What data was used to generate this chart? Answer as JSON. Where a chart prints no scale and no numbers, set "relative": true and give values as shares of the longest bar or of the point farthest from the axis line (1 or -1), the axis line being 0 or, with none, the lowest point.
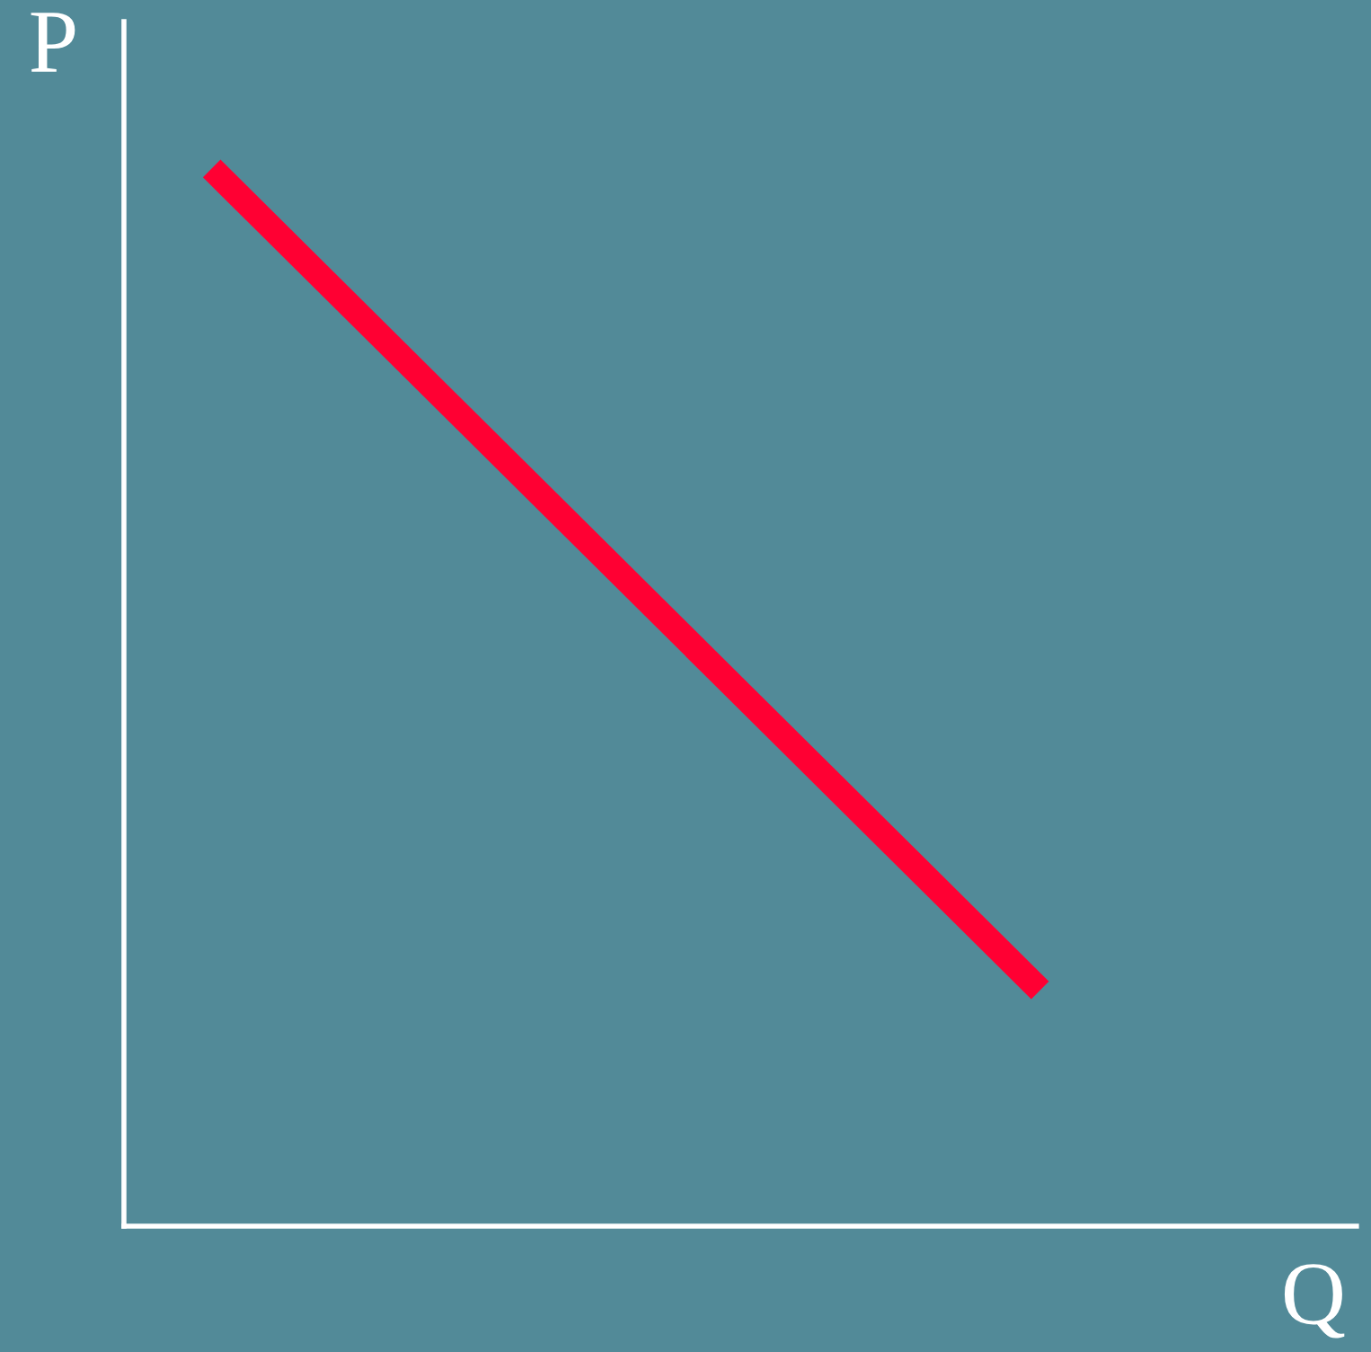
{
  "chart_data": {
    "type": "line",
    "xlabel": "Q",
    "ylabel": "P",
    "categories": [
      null,
      null
    ],
    "relative": true,
    "series": [
      {
        "color": "#ff0033",
        "values": [
          1,
          0.223
        ]
      }
    ]
  }
}
